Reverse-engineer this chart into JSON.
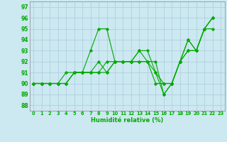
{
  "background_color": "#cce8f0",
  "grid_color": "#aaccdd",
  "line_color": "#00aa00",
  "xlabel": "Humidité relative (%)",
  "ylabel_ticks": [
    88,
    89,
    90,
    91,
    92,
    93,
    94,
    95,
    96,
    97
  ],
  "xlim": [
    -0.5,
    23.5
  ],
  "ylim": [
    87.5,
    97.5
  ],
  "series": [
    [
      90,
      90,
      90,
      90,
      91,
      91,
      91,
      93,
      95,
      95,
      92,
      92,
      92,
      93,
      92,
      92,
      89,
      90,
      92,
      94,
      93,
      95,
      96
    ],
    [
      90,
      90,
      90,
      90,
      90,
      91,
      91,
      91,
      91,
      91,
      92,
      92,
      92,
      92,
      92,
      90,
      90,
      90,
      92,
      93,
      93,
      95,
      95
    ],
    [
      90,
      90,
      90,
      90,
      90,
      91,
      91,
      91,
      92,
      91,
      92,
      92,
      92,
      92,
      92,
      91,
      90,
      90,
      92,
      93,
      93,
      95,
      96
    ],
    [
      90,
      90,
      90,
      90,
      90,
      91,
      91,
      91,
      91,
      92,
      92,
      92,
      92,
      93,
      93,
      91,
      89,
      90,
      92,
      94,
      93,
      95,
      96
    ]
  ]
}
